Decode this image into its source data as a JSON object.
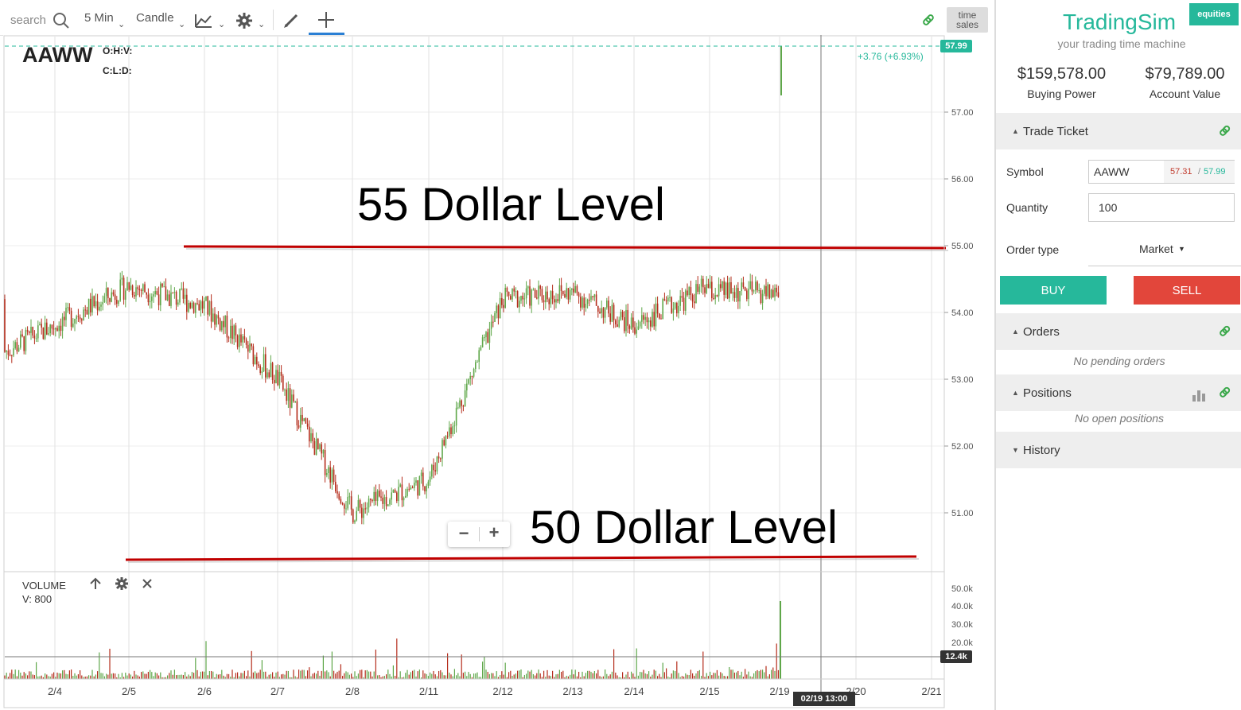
{
  "toolbar": {
    "search_placeholder": "search",
    "interval": "5 Min",
    "chart_type": "Candle",
    "time_sales_line1": "time",
    "time_sales_line2": "sales"
  },
  "chart": {
    "symbol": "AAWW",
    "ohlcv_line1": "O:H:V:",
    "ohlcv_line2": "C:L:D:",
    "last_price_label": "57.99",
    "change": "+3.76 (+6.93%)",
    "price_ticks": [
      "57.00",
      "56.00",
      "55.00",
      "54.00",
      "53.00",
      "52.00",
      "51.00"
    ],
    "date_ticks": [
      "2/4",
      "2/5",
      "2/6",
      "2/7",
      "2/8",
      "2/11",
      "2/12",
      "2/13",
      "2/14",
      "2/15",
      "2/19",
      "2/20",
      "2/21"
    ],
    "annotation_top": "55 Dollar Level",
    "annotation_bottom": "50 Dollar Level",
    "zoom_out": "−",
    "zoom_in": "+",
    "volume_title": "VOLUME",
    "volume_value": "V: 800",
    "volume_ticks": [
      "50.0k",
      "40.0k",
      "30.0k",
      "20.0k"
    ],
    "volume_label": "12.4k",
    "crosshair_time": "02/19 13:00",
    "colors": {
      "up": "#5fa74a",
      "down": "#b52d1c",
      "accent": "#26b89b",
      "line": "#c00000"
    }
  },
  "chart_data": {
    "type": "line",
    "x": [
      "2/4",
      "2/5",
      "2/6",
      "2/7",
      "2/8",
      "2/11",
      "2/12",
      "2/13",
      "2/14",
      "2/15",
      "2/19"
    ],
    "values": [
      53.4,
      54.4,
      54.1,
      53.0,
      51.0,
      51.5,
      54.2,
      54.3,
      53.8,
      54.4,
      57.9
    ],
    "ylim": [
      50.3,
      58.2
    ]
  },
  "sidebar": {
    "brand": "TradingSim",
    "tagline": "your trading time machine",
    "badge": "equities",
    "buying_power": "$159,578.00",
    "buying_power_label": "Buying Power",
    "account_value": "$79,789.00",
    "account_value_label": "Account Value",
    "trade_ticket": "Trade Ticket",
    "symbol_label": "Symbol",
    "symbol_value": "AAWW",
    "bid": "57.31",
    "ask": "57.99",
    "quantity_label": "Quantity",
    "quantity_value": "100",
    "order_type_label": "Order type",
    "order_type_value": "Market",
    "buy": "BUY",
    "sell": "SELL",
    "orders": "Orders",
    "no_orders": "No pending orders",
    "positions": "Positions",
    "no_positions": "No open positions",
    "history": "History"
  }
}
